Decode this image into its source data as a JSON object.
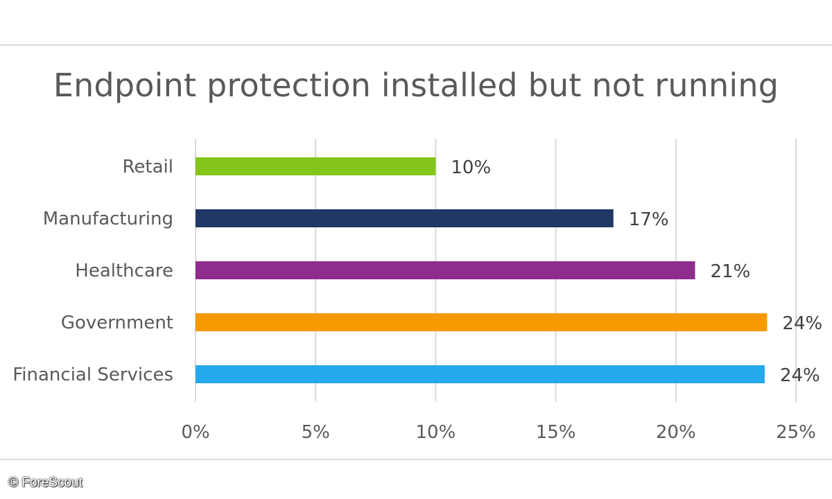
{
  "chart_data": {
    "type": "bar",
    "orientation": "horizontal",
    "title": "Endpoint protection installed but not running",
    "categories": [
      "Retail",
      "Manufacturing",
      "Healthcare",
      "Government",
      "Financial Services"
    ],
    "values": [
      10,
      17.4,
      20.8,
      23.8,
      23.7
    ],
    "value_labels": [
      "10%",
      "17%",
      "21%",
      "24%",
      "24%"
    ],
    "colors": [
      "#84c51a",
      "#1f3864",
      "#8f2d8d",
      "#f59a00",
      "#24a9ec"
    ],
    "xlim": [
      0,
      25
    ],
    "x_ticks": [
      0,
      5,
      10,
      15,
      20,
      25
    ],
    "x_tick_labels": [
      "0%",
      "5%",
      "10%",
      "15%",
      "20%",
      "25%"
    ],
    "grid": "vertical",
    "legend": "none"
  },
  "credit": "© ForeScout"
}
